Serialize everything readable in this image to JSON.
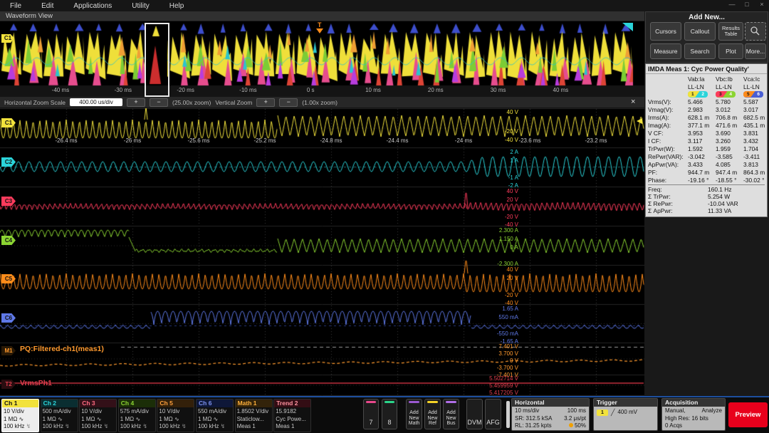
{
  "menu": {
    "items": [
      "File",
      "Edit",
      "Applications",
      "Utility",
      "Help"
    ],
    "window_controls": {
      "minimize": "—",
      "maximize": "□",
      "close": "×"
    }
  },
  "tab": "Waveform View",
  "icons": {
    "rising_edge": "╱",
    "ac_coupling": "∿",
    "bandwidth": "↯"
  },
  "overview": {
    "badge": "C1",
    "trigger_marker": "T",
    "time_labels": [
      "-40 ms",
      "-30 ms",
      "-20 ms",
      "-10 ms",
      "0 s",
      "10 ms",
      "20 ms",
      "30 ms",
      "40 ms"
    ]
  },
  "zoombar": {
    "h_label": "Horizontal Zoom Scale",
    "h_value": "400.00 us/div",
    "plus": "+",
    "minus": "−",
    "h_zoom": "(25.00x zoom)",
    "v_label": "Vertical Zoom",
    "v_zoom": "(1.00x zoom)",
    "close": "×"
  },
  "main": {
    "time_labels": [
      "-26.4 ms",
      "-26 ms",
      "-25.6 ms",
      "-25.2 ms",
      "-24.8 ms",
      "-24.4 ms",
      "-24 ms",
      "-23.6 ms",
      "-23.2 ms"
    ],
    "channels": [
      {
        "badge": "C1",
        "color": "#f2e23c",
        "scale_labels": [
          "40 V",
          "-20 V",
          "-40 V"
        ]
      },
      {
        "badge": "C2",
        "color": "#2bd4da",
        "scale_labels": [
          "2 A",
          "1 A",
          "-1 A",
          "-2 A"
        ]
      },
      {
        "badge": "C3",
        "color": "#ff3b5c",
        "scale_labels": [
          "40 V",
          "20 V",
          "-20 V",
          "-40 V"
        ]
      },
      {
        "badge": "C4",
        "color": "#8bd432",
        "scale_labels": [
          "2.300 A",
          "1.150 A",
          "0 A",
          "-2.300 A"
        ]
      },
      {
        "badge": "C5",
        "color": "#ff8c1a",
        "scale_labels": [
          "40 V",
          "20 V",
          "-20 V",
          "-40 V"
        ]
      },
      {
        "badge": "C6",
        "color": "#5f79e8",
        "scale_labels": [
          "1.65 A",
          "550 mA",
          "-550 mA",
          "-1.65 A"
        ]
      },
      {
        "badge": "M1",
        "color": "#ff9a2e",
        "scale_labels": [
          "7.401 V",
          "3.700 V",
          "0 V",
          "-3.700 V",
          "-7.401 V"
        ],
        "trace_label": "PQ:Filtered-ch1(meas1)"
      },
      {
        "badge": "T2",
        "color": "#e03e4e",
        "scale_labels": [
          "5.502714 V",
          "5.459959 V",
          "5.417205 V"
        ],
        "trace_label": "VrmsPh1"
      }
    ]
  },
  "add_new": {
    "title": "Add New...",
    "buttons": [
      "Cursors",
      "Callout",
      "Results Table",
      "Measure",
      "Search",
      "Plot",
      "More..."
    ]
  },
  "imda": {
    "title": "IMDA Meas 1: Cyc Power Quality'",
    "col_headers": [
      "Vab:Ia",
      "Vbc:Ib",
      "Vca:Ic"
    ],
    "sub_headers": [
      "LL-LN",
      "LL-LN",
      "LL-LN"
    ],
    "badges": [
      [
        "1",
        "2"
      ],
      [
        "3",
        "4"
      ],
      [
        "5",
        "6"
      ]
    ],
    "badge_colors": [
      [
        "#f2e23c",
        "#2bd4da"
      ],
      [
        "#ff3b5c",
        "#8bd432"
      ],
      [
        "#ff8c1a",
        "#4a5fd4"
      ]
    ],
    "rows": [
      {
        "label": "Vrms(V):",
        "values": [
          "5.466",
          "5.780",
          "5.587"
        ]
      },
      {
        "label": "Vmag(V):",
        "values": [
          "2.983",
          "3.012",
          "3.017"
        ]
      },
      {
        "label": "Irms(A):",
        "values": [
          "628.1 m",
          "706.8 m",
          "682.5 m"
        ]
      },
      {
        "label": "Imag(A):",
        "values": [
          "377.1 m",
          "471.6 m",
          "435.1 m"
        ]
      },
      {
        "label": "V CF:",
        "values": [
          "3.953",
          "3.690",
          "3.831"
        ]
      },
      {
        "label": "I CF:",
        "values": [
          "3.117",
          "3.260",
          "3.432"
        ]
      },
      {
        "label": "TrPwr(W):",
        "values": [
          "1.592",
          "1.959",
          "1.704"
        ]
      },
      {
        "label": "RePwr(VAR):",
        "values": [
          "-3.042",
          "-3.585",
          "-3.411"
        ]
      },
      {
        "label": "ApPwr(VA):",
        "values": [
          "3.433",
          "4.085",
          "3.813"
        ]
      },
      {
        "label": "PF:",
        "values": [
          "944.7 m",
          "947.4 m",
          "864.3 m"
        ]
      },
      {
        "label": "Phase:",
        "values": [
          "-19.16 °",
          "-18.55 °",
          "-30.02 °"
        ]
      }
    ],
    "summary": [
      {
        "label": "Freq:",
        "value": "160.1 Hz"
      },
      {
        "label": "Σ TrPwr:",
        "value": "5.254 W"
      },
      {
        "label": "Σ RePwr:",
        "value": "-10.04 VAR"
      },
      {
        "label": "Σ ApPwr:",
        "value": "11.33 VA"
      }
    ]
  },
  "bottom": {
    "cards": [
      {
        "name": "Ch 1",
        "text_color": "#111111",
        "header_bg": "#f2e23c",
        "lines": [
          "10 V/div",
          "1 MΩ",
          "100 kHz"
        ],
        "selected": true,
        "is_channel": true
      },
      {
        "name": "Ch 2",
        "text_color": "#2bd4da",
        "header_bg": "#0a2e31",
        "lines": [
          "500 mA/div",
          "1 MΩ",
          "100 kHz"
        ],
        "selected": false,
        "is_channel": true
      },
      {
        "name": "Ch 3",
        "text_color": "#ff6b81",
        "header_bg": "#331018",
        "lines": [
          "10 V/div",
          "1 MΩ",
          "100 kHz"
        ],
        "selected": false,
        "is_channel": true
      },
      {
        "name": "Ch 4",
        "text_color": "#8bd432",
        "header_bg": "#1b2e08",
        "lines": [
          "575 mA/div",
          "1 MΩ",
          "100 kHz"
        ],
        "selected": false,
        "is_channel": true
      },
      {
        "name": "Ch 5",
        "text_color": "#ffa03c",
        "header_bg": "#33200a",
        "lines": [
          "10 V/div",
          "1 MΩ",
          "100 kHz"
        ],
        "selected": false,
        "is_channel": true
      },
      {
        "name": "Ch 6",
        "text_color": "#7b90ee",
        "header_bg": "#0e1738",
        "lines": [
          "550 mA/div",
          "1 MΩ",
          "100 kHz"
        ],
        "selected": false,
        "is_channel": true
      },
      {
        "name": "Math 1",
        "text_color": "#ffb13c",
        "header_bg": "#33230a",
        "lines": [
          "1.8502 V/div",
          "Staticlow...",
          "Meas 1"
        ],
        "selected": false,
        "is_channel": false
      },
      {
        "name": "Trend 2",
        "text_color": "#ff93a0",
        "header_bg": "#330d14",
        "lines": [
          "15.9182",
          "Cyc Powe...",
          "Meas 1"
        ],
        "selected": false,
        "is_channel": false
      }
    ],
    "buttons": [
      {
        "label": "7",
        "stripe": "#e8488b"
      },
      {
        "label": "8",
        "stripe": "#2bd489"
      },
      {
        "label": "Add New Math",
        "stripe": "#9b59d0"
      },
      {
        "label": "Add New Ref",
        "stripe": "#f5d327"
      },
      {
        "label": "Add New Bus",
        "stripe": "#b06ee8"
      },
      {
        "label": "DVM",
        "stripe": ""
      },
      {
        "label": "AFG",
        "stripe": ""
      }
    ],
    "horizontal": {
      "title": "Horizontal",
      "rows": [
        [
          "10 ms/div",
          "100 ms"
        ],
        [
          "SR: 312.5 kSA",
          "3.2 μs/pt"
        ],
        [
          "RL: 31.25 kpts",
          "50%"
        ]
      ]
    },
    "trigger": {
      "title": "Trigger",
      "source": "1",
      "level": "400 mV"
    },
    "acquisition": {
      "title": "Acquisition",
      "line1_left": "Manual,",
      "line1_right": "Analyze",
      "line2": "High Res: 16 bits",
      "line3": "0 Acqs"
    },
    "preview": "Preview"
  }
}
